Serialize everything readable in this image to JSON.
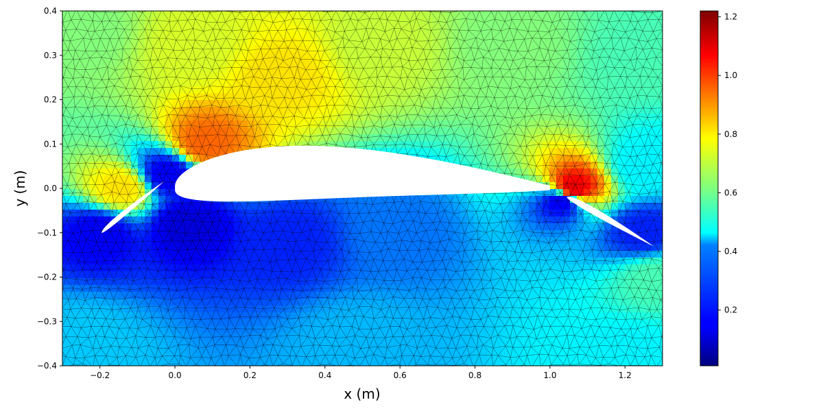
{
  "chart_data": {
    "type": "heatmap",
    "title": "",
    "xlabel": "x (m)",
    "ylabel": "y (m)",
    "xlim": [
      -0.3,
      1.3
    ],
    "ylim": [
      -0.4,
      0.4
    ],
    "x_ticks": [
      "−0.2",
      "0.0",
      "0.2",
      "0.4",
      "0.6",
      "0.8",
      "1.0",
      "1.2"
    ],
    "x_tick_values": [
      -0.2,
      0.0,
      0.2,
      0.4,
      0.6,
      0.8,
      1.0,
      1.2
    ],
    "y_ticks": [
      "−0.4",
      "−0.3",
      "−0.2",
      "−0.1",
      "0.0",
      "0.1",
      "0.2",
      "0.3",
      "0.4"
    ],
    "y_tick_values": [
      -0.4,
      -0.3,
      -0.2,
      -0.1,
      0.0,
      0.1,
      0.2,
      0.3,
      0.4
    ],
    "colorbar": {
      "colormap": "jet",
      "range": [
        0.01,
        1.22
      ],
      "ticks": [
        "0.2",
        "0.4",
        "0.6",
        "0.8",
        "1.0",
        "1.2"
      ],
      "tick_values": [
        0.2,
        0.4,
        0.6,
        0.8,
        1.0,
        1.2
      ]
    },
    "mesh": "triangular mesh, black edges",
    "field_samples": [
      {
        "x": -0.25,
        "y": 0.35,
        "value": 0.62
      },
      {
        "x": 0.05,
        "y": 0.32,
        "value": 0.72
      },
      {
        "x": 0.28,
        "y": 0.25,
        "value": 0.8
      },
      {
        "x": 0.55,
        "y": 0.32,
        "value": 0.7
      },
      {
        "x": 0.9,
        "y": 0.32,
        "value": 0.62
      },
      {
        "x": 1.25,
        "y": 0.3,
        "value": 0.55
      },
      {
        "x": 0.08,
        "y": 0.1,
        "value": 0.95
      },
      {
        "x": -0.14,
        "y": 0.0,
        "value": 0.8
      },
      {
        "x": 1.06,
        "y": 0.0,
        "value": 1.1
      },
      {
        "x": -0.02,
        "y": 0.03,
        "value": 0.15
      },
      {
        "x": 0.03,
        "y": -0.08,
        "value": 0.12
      },
      {
        "x": 0.3,
        "y": -0.12,
        "value": 0.2
      },
      {
        "x": 0.6,
        "y": -0.1,
        "value": 0.3
      },
      {
        "x": -0.2,
        "y": -0.1,
        "value": 0.15
      },
      {
        "x": 1.03,
        "y": -0.03,
        "value": 0.15
      },
      {
        "x": 1.25,
        "y": -0.1,
        "value": 0.2
      },
      {
        "x": 1.28,
        "y": -0.2,
        "value": 0.55
      },
      {
        "x": 0.5,
        "y": -0.35,
        "value": 0.38
      },
      {
        "x": -0.25,
        "y": -0.35,
        "value": 0.4
      },
      {
        "x": 1.2,
        "y": -0.38,
        "value": 0.45
      },
      {
        "x": 1.25,
        "y": 0.05,
        "value": 0.45
      }
    ],
    "bodies": [
      "slat",
      "main airfoil",
      "flap"
    ]
  }
}
